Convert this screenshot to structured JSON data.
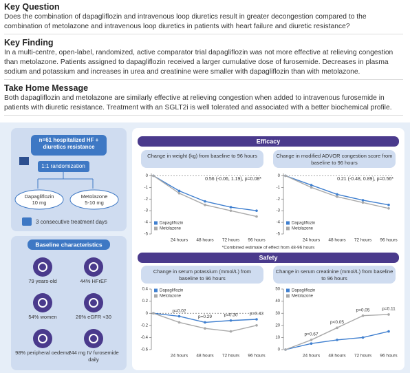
{
  "header": {
    "key_question_title": "Key Question",
    "key_question": "Does the combination of dapagliflozin and intravenous loop diuretics result in greater decongestion compared to the combination of metolazone and intravenous loop diuretics in patients with heart failure and diuretic resistance?",
    "key_finding_title": "Key Finding",
    "key_finding": "In a multi-centre, open-label, randomized, active comparator trial dapagliflozin was not more effective at relieving congestion than metolazone. Patients assigned to dapagliflozin received a larger cumulative dose of furosemide. Decreases in plasma sodium and potassium and increases in urea and creatinine were smaller with dapagliflozin than with metolazone.",
    "take_home_title": "Take Home Message",
    "take_home": "Both dapagliflozin and metolazone are similarly effective at relieving congestion when added to intravenous furosemide in patients with diuretic resistance. Treatment with an SGLT2i is well tolerated and associated with a better biochemical profile."
  },
  "design": {
    "population": "n=61 hospitalized HF + diuretics resistance",
    "randomization": "1:1 randomization",
    "arms": [
      {
        "name": "Dapagliflozin",
        "dose": "10 mg"
      },
      {
        "name": "Metolazone",
        "dose": "5-10 mg"
      }
    ],
    "duration": "3 consecutive treatment days"
  },
  "baseline": {
    "title": "Baseline characteristics",
    "items": [
      "79 years-old",
      "44% HFrEF",
      "54% women",
      "26% eGFR <30",
      "98% peripheral oedema",
      "244 mg IV furosemide daily"
    ]
  },
  "efficacy_title": "Efficacy",
  "safety_title": "Safety",
  "footnote": "*Combined estimate of effect from 48-96 hours",
  "chart_data": [
    {
      "type": "line",
      "title": "Change in weight (kg) from baseline to 96 hours",
      "categories": [
        null,
        "24 hours",
        "48 hours",
        "72 hours",
        "96 hours"
      ],
      "series": [
        {
          "name": "Dapagliflozin",
          "color": "#3f7fcf",
          "values": [
            0,
            -1.3,
            -2.2,
            -2.7,
            -3.0
          ]
        },
        {
          "name": "Metolazone",
          "color": "#a9a9a9",
          "values": [
            0,
            -1.5,
            -2.5,
            -3.0,
            -3.5
          ]
        }
      ],
      "ylim": [
        -5,
        0.2
      ],
      "yticks": [
        0,
        -1,
        -2,
        -3,
        -4,
        -5
      ],
      "reference_line": 0,
      "annotation": "0.56 (-0.06, 1.19), p=0.08*",
      "legend": "bottom-left"
    },
    {
      "type": "line",
      "title": "Change in modified ADVOR congestion score from baseline to 96 hours",
      "categories": [
        null,
        "24 hours",
        "48 hours",
        "72 hours",
        "96 hours"
      ],
      "series": [
        {
          "name": "Dapagliflozin",
          "color": "#3f7fcf",
          "values": [
            0,
            -0.8,
            -1.6,
            -2.1,
            -2.5
          ]
        },
        {
          "name": "Metolazone",
          "color": "#a9a9a9",
          "values": [
            0,
            -1.0,
            -1.8,
            -2.3,
            -2.8
          ]
        }
      ],
      "ylim": [
        -5,
        0.2
      ],
      "yticks": [
        0,
        -1,
        -2,
        -3,
        -4,
        -5
      ],
      "reference_line": 0,
      "annotation": "0.21 (-0.48, 0.89), p=0.56*",
      "legend": "bottom-left"
    },
    {
      "type": "line",
      "title": "Change in serum potassium (mmol/L) from baseline to 96 hours",
      "categories": [
        null,
        "24 hours",
        "48 hours",
        "72 hours",
        "96 hours"
      ],
      "series": [
        {
          "name": "Dapagliflozin",
          "color": "#3f7fcf",
          "values": [
            0,
            -0.05,
            -0.15,
            -0.12,
            -0.1
          ]
        },
        {
          "name": "Metolazone",
          "color": "#a9a9a9",
          "values": [
            0,
            -0.15,
            -0.25,
            -0.3,
            -0.2
          ]
        }
      ],
      "ylim": [
        -0.6,
        0.4
      ],
      "yticks": [
        0.4,
        0.2,
        0,
        -0.2,
        -0.4,
        -0.6
      ],
      "reference_line": 0,
      "p_labels": [
        null,
        "p=0.02",
        "p=0.29",
        "p=0.30",
        "p=0.43"
      ],
      "legend": "top-left"
    },
    {
      "type": "line",
      "title": "Change in serum creatinine (mmol/L) from baseline to 96 hours",
      "categories": [
        null,
        "24 hours",
        "48 hours",
        "72 hours",
        "96 hours"
      ],
      "series": [
        {
          "name": "Dapagliflozin",
          "color": "#3f7fcf",
          "values": [
            0,
            5,
            8,
            10,
            15
          ]
        },
        {
          "name": "Metolazone",
          "color": "#a9a9a9",
          "values": [
            0,
            8,
            18,
            28,
            29
          ]
        }
      ],
      "ylim": [
        0,
        50
      ],
      "yticks": [
        0,
        10,
        20,
        30,
        40,
        50
      ],
      "p_labels": [
        null,
        "p=0.67",
        "p<0.05",
        "p=0.05",
        "p=0.11"
      ],
      "legend": "top-left"
    }
  ]
}
